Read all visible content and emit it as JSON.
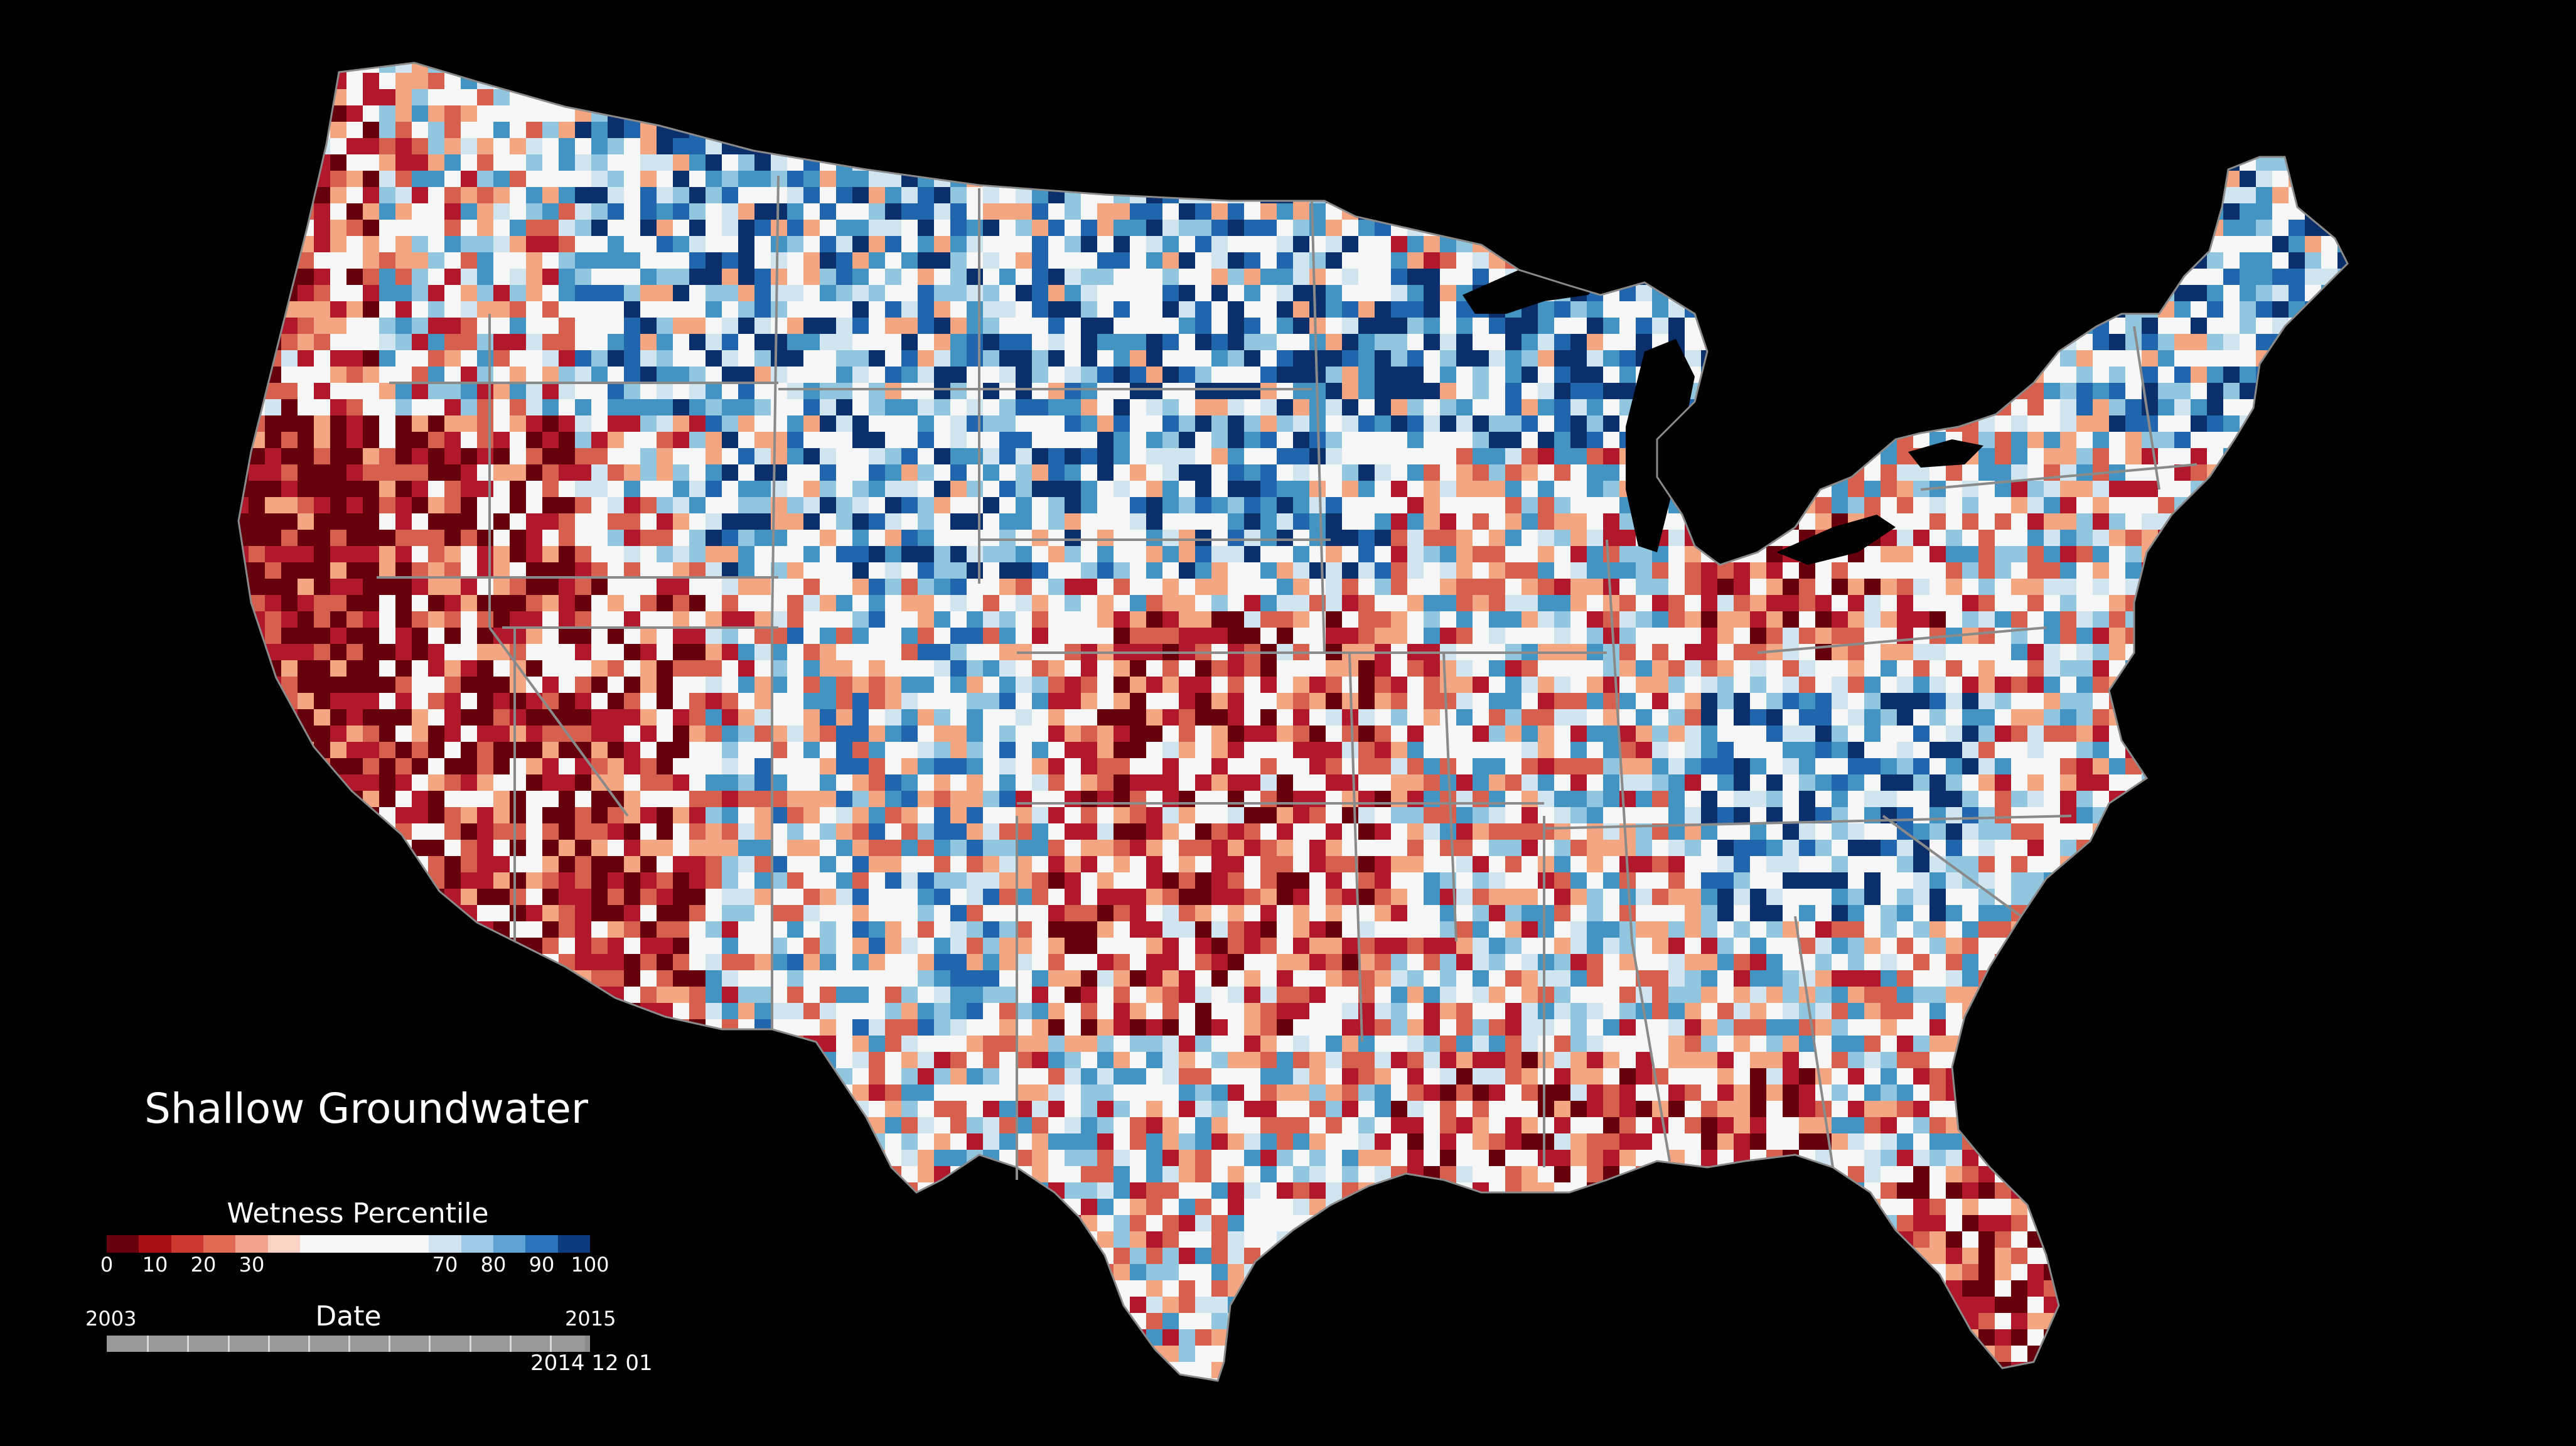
{
  "title": "Shallow Groundwater",
  "legend": {
    "title": "Wetness Percentile",
    "ticks": [
      "0",
      "10",
      "20",
      "30",
      "70",
      "80",
      "90",
      "100"
    ],
    "tick_values": [
      0,
      10,
      20,
      30,
      70,
      80,
      90,
      100
    ],
    "colors": [
      "#67000d",
      "#a50f15",
      "#cb3a2e",
      "#e16a55",
      "#f2a48f",
      "#f8d3c6",
      "#f7f7f7",
      "#f7f7f7",
      "#f7f7f7",
      "#f7f7f7",
      "#cfe3f1",
      "#9ec9e5",
      "#5fa3d3",
      "#2b72b8",
      "#0b3a7e"
    ]
  },
  "timeline": {
    "label": "Date",
    "start_year": "2003",
    "end_year": "2015",
    "current_date": "2014 12 01",
    "progress_fraction": 0.99
  },
  "map": {
    "region": "contiguous United States",
    "water_color": "#000000",
    "border_color": "#8a8a8a",
    "palette": {
      "very_dry": "#67000d",
      "dry": "#b2182b",
      "moderately_dry": "#d6604d",
      "slightly_dry": "#f4a582",
      "near_normal": "#f7f7f7",
      "slightly_wet": "#d1e5f0",
      "moderately_wet": "#92c5de",
      "wet": "#4393c3",
      "very_wet": "#2166ac",
      "extremely_wet": "#0b2f6b"
    }
  }
}
